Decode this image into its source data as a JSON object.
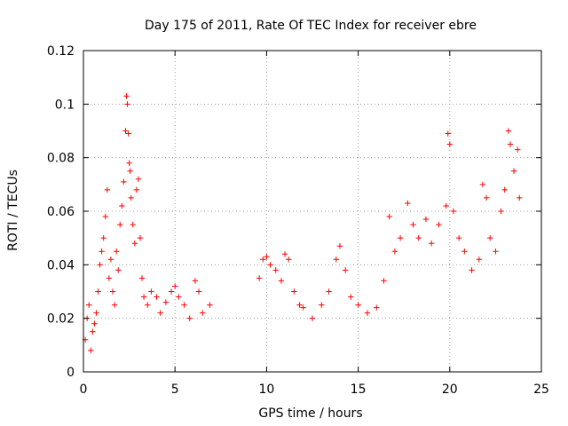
{
  "chart_data": {
    "type": "scatter",
    "title": "Day 175 of 2011, Rate Of TEC Index for receiver ebre",
    "xlabel": "GPS time / hours",
    "ylabel": "ROTI / TECUs",
    "xlim": [
      0,
      25
    ],
    "ylim": [
      0,
      0.12
    ],
    "x_ticks": [
      "0",
      "5",
      "10",
      "15",
      "20",
      "25"
    ],
    "y_ticks": [
      "0",
      "0.02",
      "0.04",
      "0.06",
      "0.08",
      "0.1",
      "0.12"
    ],
    "grid": true,
    "marker": "+",
    "marker_color": "#ff0000",
    "note": "Dense point cloud; values estimated from visual envelope. Gap in data between ~7.0 and ~9.5 hours.",
    "series": [
      {
        "name": "ROTI",
        "color": "#ff0000",
        "points": [
          [
            0.1,
            0.012
          ],
          [
            0.2,
            0.02
          ],
          [
            0.3,
            0.025
          ],
          [
            0.4,
            0.008
          ],
          [
            0.5,
            0.015
          ],
          [
            0.6,
            0.018
          ],
          [
            0.7,
            0.022
          ],
          [
            0.8,
            0.03
          ],
          [
            0.9,
            0.04
          ],
          [
            1.0,
            0.045
          ],
          [
            1.1,
            0.05
          ],
          [
            1.2,
            0.058
          ],
          [
            1.3,
            0.068
          ],
          [
            1.4,
            0.035
          ],
          [
            1.5,
            0.042
          ],
          [
            1.6,
            0.03
          ],
          [
            1.7,
            0.025
          ],
          [
            1.8,
            0.045
          ],
          [
            1.9,
            0.038
          ],
          [
            2.0,
            0.055
          ],
          [
            2.1,
            0.062
          ],
          [
            2.2,
            0.071
          ],
          [
            2.3,
            0.09
          ],
          [
            2.35,
            0.103
          ],
          [
            2.4,
            0.1
          ],
          [
            2.45,
            0.089
          ],
          [
            2.5,
            0.078
          ],
          [
            2.55,
            0.075
          ],
          [
            2.6,
            0.065
          ],
          [
            2.7,
            0.055
          ],
          [
            2.8,
            0.048
          ],
          [
            2.9,
            0.068
          ],
          [
            3.0,
            0.072
          ],
          [
            3.1,
            0.05
          ],
          [
            3.2,
            0.035
          ],
          [
            3.3,
            0.028
          ],
          [
            3.5,
            0.025
          ],
          [
            3.7,
            0.03
          ],
          [
            4.0,
            0.028
          ],
          [
            4.2,
            0.022
          ],
          [
            4.5,
            0.026
          ],
          [
            4.8,
            0.03
          ],
          [
            5.0,
            0.032
          ],
          [
            5.2,
            0.028
          ],
          [
            5.5,
            0.025
          ],
          [
            5.8,
            0.02
          ],
          [
            6.1,
            0.034
          ],
          [
            6.3,
            0.03
          ],
          [
            6.5,
            0.022
          ],
          [
            6.9,
            0.025
          ],
          [
            9.6,
            0.035
          ],
          [
            9.8,
            0.042
          ],
          [
            10.0,
            0.043
          ],
          [
            10.2,
            0.04
          ],
          [
            10.5,
            0.038
          ],
          [
            10.8,
            0.034
          ],
          [
            11.0,
            0.044
          ],
          [
            11.2,
            0.042
          ],
          [
            11.5,
            0.03
          ],
          [
            11.8,
            0.025
          ],
          [
            12.0,
            0.024
          ],
          [
            12.5,
            0.02
          ],
          [
            13.0,
            0.025
          ],
          [
            13.4,
            0.03
          ],
          [
            13.8,
            0.042
          ],
          [
            14.0,
            0.047
          ],
          [
            14.3,
            0.038
          ],
          [
            14.6,
            0.028
          ],
          [
            15.0,
            0.025
          ],
          [
            15.5,
            0.022
          ],
          [
            16.0,
            0.024
          ],
          [
            16.4,
            0.034
          ],
          [
            16.7,
            0.058
          ],
          [
            17.0,
            0.045
          ],
          [
            17.3,
            0.05
          ],
          [
            17.7,
            0.063
          ],
          [
            18.0,
            0.055
          ],
          [
            18.3,
            0.05
          ],
          [
            18.7,
            0.057
          ],
          [
            19.0,
            0.048
          ],
          [
            19.4,
            0.055
          ],
          [
            19.8,
            0.062
          ],
          [
            19.9,
            0.089
          ],
          [
            20.0,
            0.085
          ],
          [
            20.2,
            0.06
          ],
          [
            20.5,
            0.05
          ],
          [
            20.8,
            0.045
          ],
          [
            21.2,
            0.038
          ],
          [
            21.6,
            0.042
          ],
          [
            21.8,
            0.07
          ],
          [
            22.0,
            0.065
          ],
          [
            22.2,
            0.05
          ],
          [
            22.5,
            0.045
          ],
          [
            22.8,
            0.06
          ],
          [
            23.0,
            0.068
          ],
          [
            23.2,
            0.09
          ],
          [
            23.3,
            0.085
          ],
          [
            23.5,
            0.075
          ],
          [
            23.7,
            0.083
          ],
          [
            23.8,
            0.065
          ]
        ]
      }
    ]
  }
}
